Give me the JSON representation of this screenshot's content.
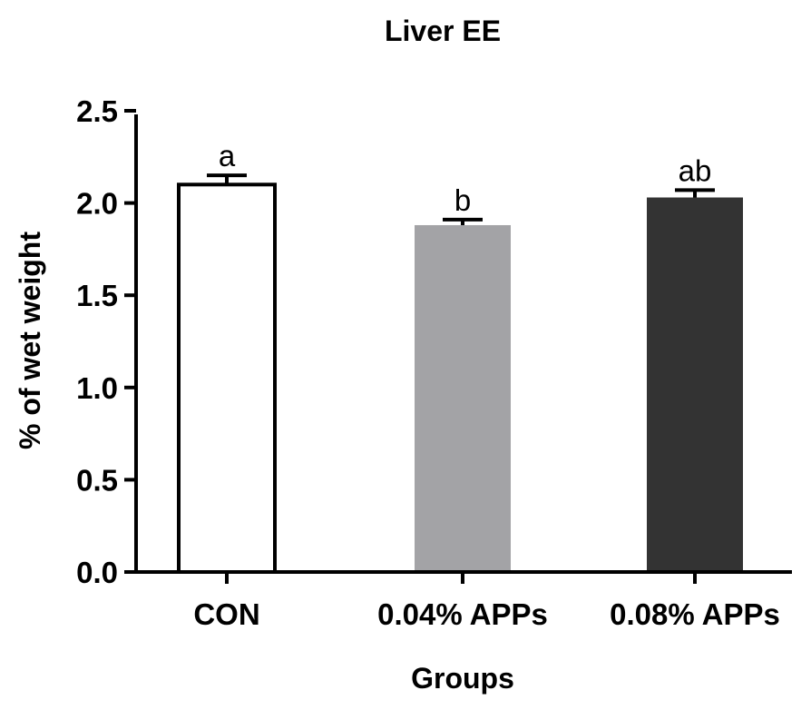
{
  "chart_data": {
    "type": "bar",
    "title": "Liver EE",
    "xlabel": "Groups",
    "ylabel": "% of wet weight",
    "ylim": [
      0,
      2.5
    ],
    "yticks": [
      0.0,
      0.5,
      1.0,
      1.5,
      2.0,
      2.5
    ],
    "ytick_labels": [
      "0.0",
      "0.5",
      "1.0",
      "1.5",
      "2.0",
      "2.5"
    ],
    "categories": [
      "CON",
      "0.04% APPs",
      "0.08% APPs"
    ],
    "values": [
      2.1,
      1.88,
      2.03
    ],
    "errors": [
      0.05,
      0.03,
      0.04
    ],
    "significance_labels": [
      "a",
      "b",
      "ab"
    ],
    "bar_colors": [
      "#ffffff",
      "#a3a3a6",
      "#333333"
    ],
    "grid": false
  }
}
